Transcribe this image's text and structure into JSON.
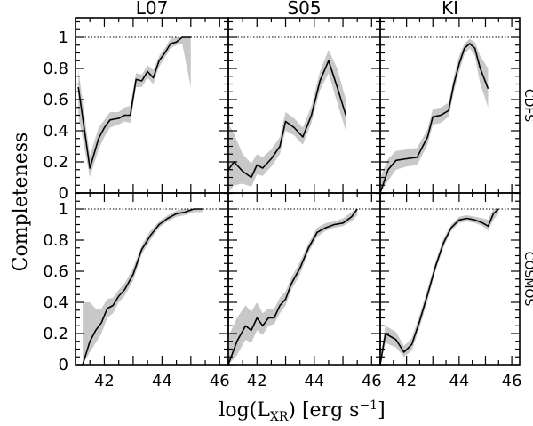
{
  "chart_data": {
    "type": "line",
    "ylabel": "Completeness",
    "xlabel_main": "log(L",
    "xlabel_sub": "XR",
    "xlabel_rest": ") [erg s",
    "xlabel_sup": "−1",
    "xlabel_end": "]",
    "columns": [
      "L07",
      "S05",
      "KI"
    ],
    "rows": [
      "CDFS",
      "COSMOS"
    ],
    "xlim": [
      41,
      46.3
    ],
    "ylim": [
      0,
      1.1
    ],
    "xticks": [
      42,
      44,
      46
    ],
    "xtick_labels": [
      "42",
      "44",
      "46"
    ],
    "yticks_top": [
      0,
      0.2,
      0.4,
      0.6,
      0.8,
      1
    ],
    "ytick_labels_top": [
      "0",
      "0.2",
      "0.4",
      "0.6",
      "0.8",
      "1"
    ],
    "yticks_bottom": [
      0,
      0.2,
      0.4,
      0.6,
      0.8,
      1
    ],
    "ytick_labels_bottom": [
      "0",
      "0.2",
      "0.4",
      "0.6",
      "0.8",
      "1"
    ],
    "reference_line": 1,
    "panels": [
      {
        "col": 0,
        "row": 0,
        "x": [
          41.1,
          41.5,
          41.8,
          42.0,
          42.2,
          42.5,
          42.7,
          42.9,
          43.1,
          43.3,
          43.5,
          43.7,
          43.9,
          44.1,
          44.3,
          44.5,
          44.7,
          45.0
        ],
        "y": [
          0.68,
          0.16,
          0.35,
          0.42,
          0.47,
          0.48,
          0.5,
          0.5,
          0.73,
          0.72,
          0.78,
          0.74,
          0.85,
          0.9,
          0.96,
          0.97,
          1.0,
          1.0
        ],
        "lo": [
          0.5,
          0.1,
          0.28,
          0.36,
          0.42,
          0.44,
          0.46,
          0.45,
          0.68,
          0.68,
          0.74,
          0.7,
          0.81,
          0.87,
          0.93,
          0.95,
          0.96,
          0.68
        ],
        "hi": [
          0.8,
          0.24,
          0.42,
          0.47,
          0.52,
          0.52,
          0.55,
          0.56,
          0.77,
          0.76,
          0.82,
          0.79,
          0.88,
          0.93,
          0.99,
          1.0,
          1.0,
          1.0
        ]
      },
      {
        "col": 1,
        "row": 0,
        "x": [
          41.0,
          41.2,
          41.5,
          41.8,
          42.0,
          42.2,
          42.5,
          42.8,
          43.0,
          43.3,
          43.6,
          43.9,
          44.2,
          44.5,
          44.8,
          45.1
        ],
        "y": [
          0.15,
          0.2,
          0.14,
          0.1,
          0.18,
          0.16,
          0.22,
          0.3,
          0.46,
          0.42,
          0.36,
          0.5,
          0.72,
          0.85,
          0.68,
          0.5
        ],
        "lo": [
          0.0,
          0.05,
          0.06,
          0.04,
          0.12,
          0.11,
          0.17,
          0.25,
          0.4,
          0.37,
          0.31,
          0.45,
          0.66,
          0.77,
          0.58,
          0.4
        ],
        "hi": [
          0.45,
          0.38,
          0.25,
          0.19,
          0.25,
          0.23,
          0.28,
          0.36,
          0.52,
          0.48,
          0.42,
          0.56,
          0.78,
          0.92,
          0.8,
          0.6
        ]
      },
      {
        "col": 2,
        "row": 0,
        "x": [
          41.0,
          41.3,
          41.6,
          42.0,
          42.4,
          42.8,
          43.0,
          43.3,
          43.6,
          43.8,
          44.0,
          44.2,
          44.4,
          44.6,
          44.8,
          45.1
        ],
        "y": [
          0.0,
          0.15,
          0.21,
          0.22,
          0.23,
          0.36,
          0.49,
          0.5,
          0.53,
          0.7,
          0.83,
          0.93,
          0.96,
          0.93,
          0.8,
          0.67
        ],
        "lo": [
          0.0,
          0.08,
          0.15,
          0.17,
          0.18,
          0.31,
          0.44,
          0.45,
          0.49,
          0.65,
          0.78,
          0.89,
          0.93,
          0.88,
          0.7,
          0.55
        ],
        "hi": [
          0.1,
          0.22,
          0.27,
          0.28,
          0.29,
          0.41,
          0.54,
          0.55,
          0.58,
          0.75,
          0.88,
          0.96,
          0.99,
          0.97,
          0.88,
          0.8
        ]
      },
      {
        "col": 0,
        "row": 1,
        "x": [
          41.25,
          41.5,
          41.7,
          41.9,
          42.1,
          42.3,
          42.5,
          42.7,
          43.0,
          43.3,
          43.6,
          43.9,
          44.2,
          44.5,
          44.8,
          45.1,
          45.4
        ],
        "y": [
          0.0,
          0.15,
          0.22,
          0.27,
          0.36,
          0.38,
          0.44,
          0.48,
          0.58,
          0.74,
          0.83,
          0.9,
          0.94,
          0.97,
          0.98,
          1.0,
          1.0
        ],
        "lo": [
          0.0,
          0.08,
          0.14,
          0.2,
          0.3,
          0.33,
          0.4,
          0.44,
          0.54,
          0.71,
          0.8,
          0.88,
          0.92,
          0.95,
          0.96,
          0.98,
          0.98
        ],
        "hi": [
          0.4,
          0.4,
          0.36,
          0.36,
          0.42,
          0.43,
          0.48,
          0.52,
          0.62,
          0.77,
          0.86,
          0.92,
          0.96,
          0.99,
          1.0,
          1.0,
          1.0
        ]
      },
      {
        "col": 1,
        "row": 1,
        "x": [
          41.0,
          41.3,
          41.6,
          41.8,
          42.0,
          42.2,
          42.4,
          42.6,
          42.8,
          43.0,
          43.2,
          43.5,
          43.8,
          44.1,
          44.4,
          44.7,
          45.0,
          45.3,
          45.5
        ],
        "y": [
          0.0,
          0.15,
          0.25,
          0.22,
          0.3,
          0.25,
          0.3,
          0.3,
          0.38,
          0.42,
          0.52,
          0.62,
          0.75,
          0.85,
          0.88,
          0.9,
          0.91,
          0.95,
          1.0
        ],
        "lo": [
          0.0,
          0.06,
          0.16,
          0.14,
          0.22,
          0.19,
          0.25,
          0.26,
          0.33,
          0.38,
          0.48,
          0.58,
          0.72,
          0.82,
          0.86,
          0.88,
          0.89,
          0.92,
          0.96
        ],
        "hi": [
          0.18,
          0.3,
          0.38,
          0.34,
          0.4,
          0.33,
          0.36,
          0.36,
          0.43,
          0.47,
          0.56,
          0.66,
          0.78,
          0.88,
          0.91,
          0.92,
          0.94,
          0.98,
          1.0
        ]
      },
      {
        "col": 2,
        "row": 1,
        "x": [
          41.0,
          41.2,
          41.6,
          41.9,
          42.2,
          42.5,
          42.8,
          43.1,
          43.4,
          43.7,
          44.0,
          44.3,
          44.6,
          44.9,
          45.1,
          45.3,
          45.5
        ],
        "y": [
          0.0,
          0.2,
          0.16,
          0.08,
          0.13,
          0.28,
          0.45,
          0.63,
          0.78,
          0.88,
          0.93,
          0.94,
          0.93,
          0.91,
          0.89,
          0.97,
          1.0
        ],
        "lo": [
          0.0,
          0.14,
          0.11,
          0.05,
          0.09,
          0.24,
          0.41,
          0.6,
          0.75,
          0.86,
          0.91,
          0.92,
          0.91,
          0.89,
          0.86,
          0.93,
          0.97
        ],
        "hi": [
          0.05,
          0.25,
          0.21,
          0.12,
          0.17,
          0.32,
          0.49,
          0.66,
          0.81,
          0.9,
          0.95,
          0.96,
          0.95,
          0.94,
          0.93,
          1.0,
          1.0
        ]
      }
    ]
  }
}
